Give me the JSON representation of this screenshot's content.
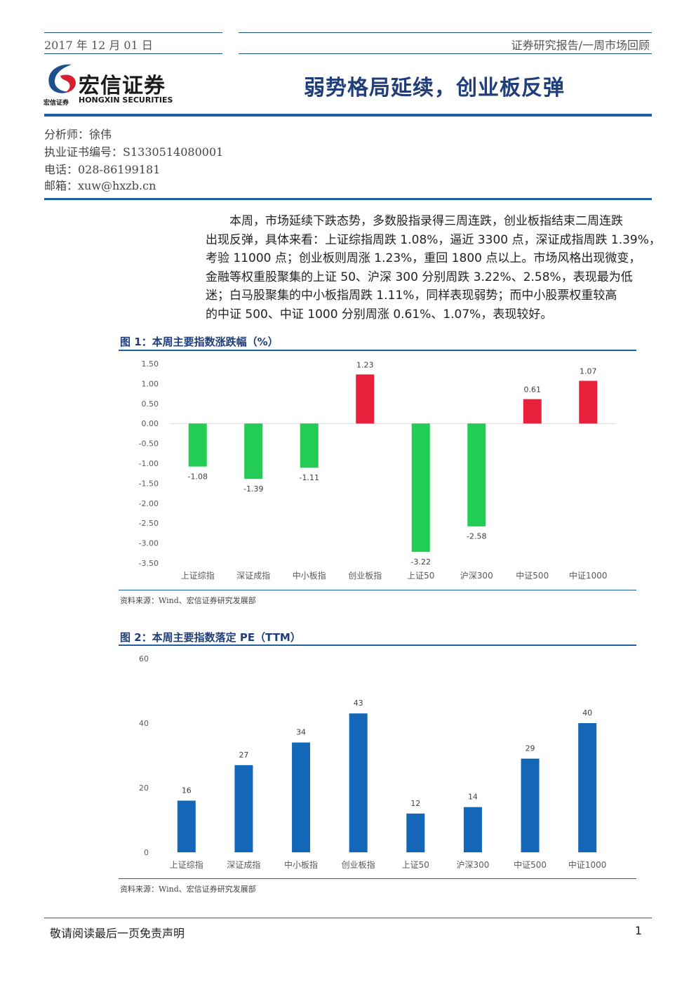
{
  "header": {
    "date": "2017 年 12 月 01 日",
    "section": "证券研究报告/一周市场回顾"
  },
  "logo": {
    "name_cn": "宏信证券",
    "name_en": "HONGXIN SECURITIES",
    "small_cn": "宏信证券"
  },
  "title": "弱势格局延续，创业板反弹",
  "analyst": {
    "name": "分析师：徐伟",
    "cert": "执业证书编号：S1330514080001",
    "phone": "电话：028-86199181",
    "email": "邮箱：xuw@hxzb.cn"
  },
  "summary_lines": [
    "本周，市场延续下跌态势，多数股指录得三周连跌，创业板指结束二周连跌",
    "出现反弹，具体来看：上证综指周跌 1.08%，逼近 3300 点，深证成指周跌 1.39%，",
    "考验 11000 点；创业板则周涨 1.23%，重回 1800 点以上。市场风格出现微变，",
    "金融等权重股聚集的上证 50、沪深 300 分别周跌 3.22%、2.58%，表现最为低",
    "迷；白马股聚集的中小板指周跌 1.11%，同样表现弱势；而中小股票权重较高",
    "的中证 500、中证 1000 分别周涨 0.61%、1.07%，表现较好。"
  ],
  "figure1": {
    "title": "图 1：本周主要指数涨跌幅（%）",
    "source": "资料来源：Wind、宏信证券研究发展部"
  },
  "figure2": {
    "title": "图 2：本周主要指数落定 PE（TTM）",
    "source": "资料来源：Wind、宏信证券研究发展部"
  },
  "footer": {
    "disclaimer": "敬请阅读最后一页免责声明",
    "page": "1"
  },
  "colors": {
    "brand_blue": "#1f5fa6",
    "up_red": "#e8203c",
    "down_green": "#22cc55",
    "pe_blue": "#1466b8"
  },
  "chart_data": [
    {
      "type": "bar",
      "title": "图 1：本周主要指数涨跌幅（%）",
      "categories": [
        "上证综指",
        "深证成指",
        "中小板指",
        "创业板指",
        "上证50",
        "沪深300",
        "中证500",
        "中证1000"
      ],
      "values": [
        -1.08,
        -1.39,
        -1.11,
        1.23,
        -3.22,
        -2.58,
        0.61,
        1.07
      ],
      "data_labels": [
        "-1.08",
        "-1.39",
        "-1.11",
        "1.23",
        "-3.22",
        "-2.58",
        "0.61",
        "1.07"
      ],
      "yticks": [
        "1.50",
        "1.00",
        "0.50",
        "0.00",
        "-0.50",
        "-1.00",
        "-1.50",
        "-2.00",
        "-2.50",
        "-3.00",
        "-3.50"
      ],
      "ylim": [
        -3.5,
        1.5
      ],
      "grid": false
    },
    {
      "type": "bar",
      "title": "图 2：本周主要指数落定 PE（TTM）",
      "categories": [
        "上证综指",
        "深证成指",
        "中小板指",
        "创业板指",
        "上证50",
        "沪深300",
        "中证500",
        "中证1000"
      ],
      "values": [
        16,
        27,
        34,
        43,
        12,
        14,
        29,
        40
      ],
      "data_labels": [
        "16",
        "27",
        "34",
        "43",
        "12",
        "14",
        "29",
        "40"
      ],
      "yticks": [
        "60",
        "40",
        "20",
        "0"
      ],
      "ylim": [
        0,
        60
      ],
      "grid": false
    }
  ]
}
